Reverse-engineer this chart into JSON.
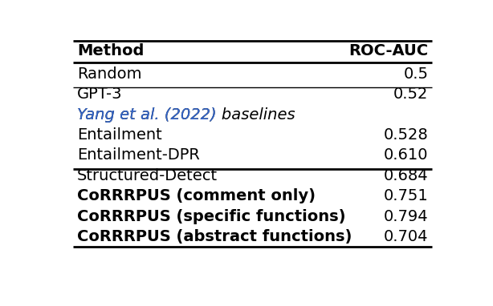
{
  "header": [
    "Method",
    "ROC-AUC"
  ],
  "rows": [
    {
      "method": "Random",
      "value": "0.5",
      "bold": false,
      "italic": false,
      "blue": false,
      "is_section": false
    },
    {
      "method": "GPT-3",
      "value": "0.52",
      "bold": false,
      "italic": false,
      "blue": false,
      "is_section": false
    },
    {
      "method": "Yang et al. (2022) baselines",
      "value": "",
      "bold": false,
      "italic": true,
      "blue": true,
      "is_section": true,
      "blue_part": "Yang et al. (2022)",
      "black_part": " baselines"
    },
    {
      "method": "Entailment",
      "value": "0.528",
      "bold": false,
      "italic": false,
      "blue": false,
      "is_section": false
    },
    {
      "method": "Entailment-DPR",
      "value": "0.610",
      "bold": false,
      "italic": false,
      "blue": false,
      "is_section": false
    },
    {
      "method": "Structured-Detect",
      "value": "0.684",
      "bold": false,
      "italic": false,
      "blue": false,
      "is_section": false
    },
    {
      "method": "CoRRRPUS (comment only)",
      "value": "0.751",
      "bold": true,
      "italic": false,
      "blue": false,
      "is_section": false
    },
    {
      "method": "CoRRRPUS (specific functions)",
      "value": "0.794",
      "bold": true,
      "italic": false,
      "blue": false,
      "is_section": false
    },
    {
      "method": "CoRRRPUS (abstract functions)",
      "value": "0.704",
      "bold": true,
      "italic": false,
      "blue": false,
      "is_section": false
    }
  ],
  "line_after": [
    1,
    5
  ],
  "bg_color": "#ffffff",
  "text_color": "#000000",
  "blue_color": "#3366cc",
  "header_fontsize": 14,
  "row_fontsize": 14,
  "fig_width": 6.14,
  "fig_height": 3.82
}
